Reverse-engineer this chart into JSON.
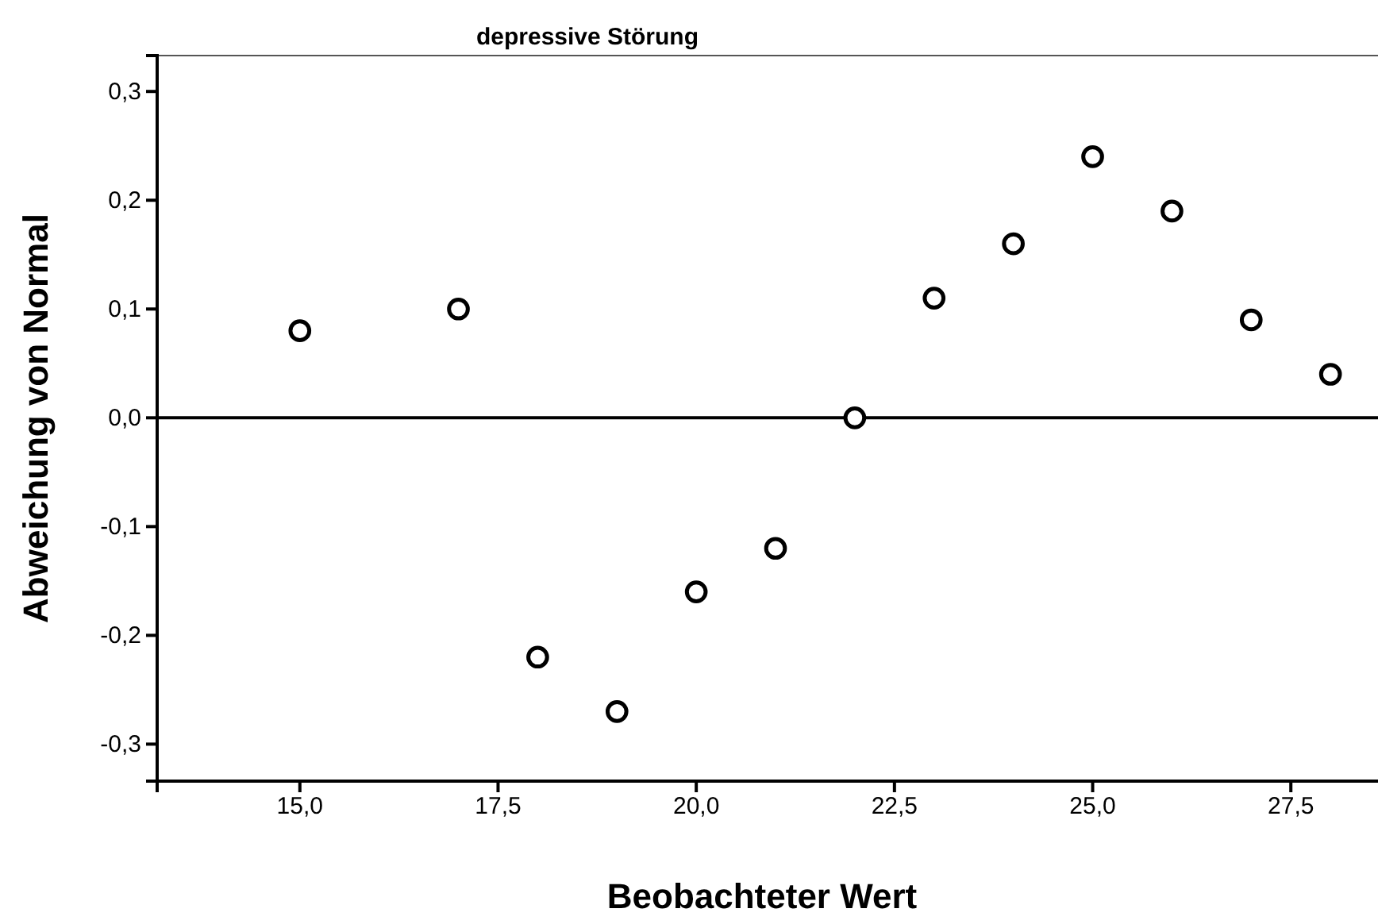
{
  "chart_data": {
    "type": "scatter",
    "title": "depressive Störung",
    "xlabel": "Beobachteter Wert",
    "ylabel": "Abweichung von Normal",
    "x": [
      15,
      17,
      18,
      19,
      20,
      21,
      22,
      23,
      24,
      25,
      26,
      27,
      28
    ],
    "values": [
      0.08,
      0.1,
      -0.22,
      -0.27,
      -0.16,
      -0.12,
      0.0,
      0.11,
      0.16,
      0.24,
      0.19,
      0.09,
      0.04
    ],
    "color": "#000000",
    "marker": "circle",
    "xlim": [
      13.2,
      29.2
    ],
    "ylim": [
      -0.334,
      0.333
    ],
    "xticks": [
      {
        "value": 15,
        "label": "15,0"
      },
      {
        "value": 17.5,
        "label": "17,5"
      },
      {
        "value": 20,
        "label": "20,0"
      },
      {
        "value": 22.5,
        "label": "22,5"
      },
      {
        "value": 25,
        "label": "25,0"
      },
      {
        "value": 27.5,
        "label": "27,5"
      }
    ],
    "yticks": [
      {
        "value": -0.3,
        "label": "-0,3"
      },
      {
        "value": -0.2,
        "label": "-0,2"
      },
      {
        "value": -0.1,
        "label": "-0,1"
      },
      {
        "value": 0,
        "label": "0,0"
      },
      {
        "value": 0.1,
        "label": "0,1"
      },
      {
        "value": 0.2,
        "label": "0,2"
      },
      {
        "value": 0.3,
        "label": "0,3"
      }
    ],
    "ref_lines": [
      {
        "axis": "y",
        "value": 0,
        "color": "#000000"
      }
    ],
    "grid": false
  }
}
